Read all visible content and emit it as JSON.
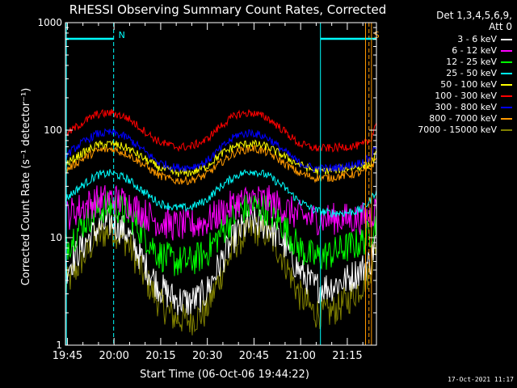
{
  "chart_data": {
    "type": "line",
    "title": "RHESSI Observing Summary Count Rates, Corrected",
    "xlabel": "Start Time (06-Oct-06 19:44:22)",
    "ylabel": "Corrected Count Rate (s⁻¹ detector⁻¹)",
    "yscale": "log",
    "ylim": [
      1,
      1000
    ],
    "xlim_minutes": [
      0,
      100
    ],
    "x_ticks": [
      "19:45",
      "20:00",
      "20:15",
      "20:30",
      "20:45",
      "21:00",
      "21:15"
    ],
    "x_tick_minutes": [
      0.63,
      15.63,
      30.63,
      45.63,
      60.63,
      75.63,
      90.63
    ],
    "y_ticks": [
      "1",
      "10",
      "100",
      "1000"
    ],
    "y_tick_values": [
      1,
      10,
      100,
      1000
    ],
    "legend_title": [
      "Det 1,3,4,5,6,9,",
      "Att 0"
    ],
    "legend_placement": "right",
    "x": [
      0,
      5,
      10,
      15,
      20,
      25,
      30,
      35,
      40,
      45,
      50,
      55,
      60,
      65,
      70,
      75,
      80,
      85,
      90,
      95,
      98,
      100
    ],
    "series": [
      {
        "name": "3 - 6 keV",
        "color": "#ffffff",
        "values": [
          5,
          8,
          12,
          14,
          11,
          6,
          3.5,
          2.7,
          2.5,
          3,
          6,
          11,
          14,
          13,
          9,
          5,
          3.5,
          3.5,
          4,
          5,
          6,
          10
        ]
      },
      {
        "name": "6 - 12 keV",
        "color": "#ff00ff",
        "values": [
          16,
          19,
          22,
          23,
          21,
          17,
          14,
          13,
          13,
          14,
          17,
          21,
          23,
          22,
          19,
          16,
          15,
          15,
          15,
          15,
          16,
          19
        ]
      },
      {
        "name": "12 - 25 keV",
        "color": "#00ff00",
        "values": [
          8,
          13,
          18,
          20,
          17,
          11,
          7,
          6,
          6,
          7,
          11,
          17,
          20,
          18,
          13,
          8,
          6.5,
          7,
          8,
          9,
          11,
          14
        ]
      },
      {
        "name": "25 - 50 keV",
        "color": "#00ffff",
        "values": [
          23,
          30,
          38,
          40,
          35,
          27,
          21,
          19,
          19,
          22,
          30,
          38,
          42,
          38,
          30,
          22,
          18,
          17,
          17,
          18,
          22,
          28
        ]
      },
      {
        "name": "50 - 100 keV",
        "color": "#ffff00",
        "values": [
          48,
          60,
          72,
          75,
          68,
          55,
          45,
          40,
          40,
          45,
          60,
          72,
          75,
          70,
          58,
          48,
          42,
          42,
          44,
          46,
          48,
          60
        ]
      },
      {
        "name": "100 - 300 keV",
        "color": "#ff0000",
        "values": [
          90,
          115,
          140,
          145,
          130,
          100,
          78,
          70,
          70,
          80,
          110,
          140,
          145,
          130,
          100,
          75,
          68,
          68,
          70,
          72,
          80,
          120
        ]
      },
      {
        "name": "300 - 800 keV",
        "color": "#0000ff",
        "values": [
          58,
          75,
          92,
          95,
          85,
          65,
          50,
          45,
          45,
          50,
          68,
          90,
          95,
          85,
          65,
          50,
          44,
          44,
          46,
          50,
          55,
          75
        ]
      },
      {
        "name": "800 - 7000 keV",
        "color": "#ff9900",
        "values": [
          42,
          53,
          64,
          67,
          60,
          48,
          38,
          34,
          34,
          38,
          50,
          63,
          68,
          62,
          50,
          40,
          36,
          36,
          38,
          40,
          44,
          55
        ]
      },
      {
        "name": "7000 - 15000 keV",
        "color": "#808000",
        "values": [
          3.5,
          6,
          10,
          12,
          9,
          4.5,
          2.5,
          1.8,
          1.7,
          2,
          4.5,
          9,
          12,
          11,
          6.5,
          3,
          2,
          2,
          2.5,
          3.5,
          5,
          9
        ]
      }
    ],
    "annotations": [
      {
        "label": "N",
        "color": "#00ffff",
        "x_minute": 15.5
      },
      {
        "label": "S",
        "color": "#ff9900",
        "x_minute": 97.6
      }
    ],
    "grid": false
  },
  "timestamp": "17-Oct-2021 11:17"
}
